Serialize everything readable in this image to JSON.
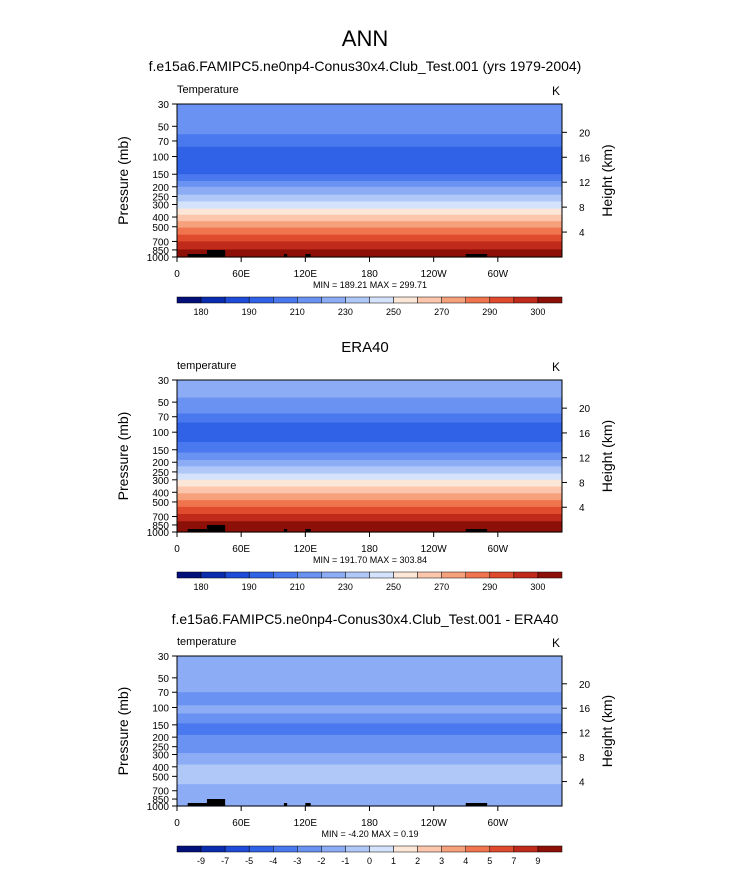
{
  "page_title": "ANN",
  "panel_colors": {
    "abs": [
      "#04107a",
      "#0a2db0",
      "#1e4cd8",
      "#2f62e6",
      "#4a78ee",
      "#6a92f2",
      "#8cacf5",
      "#b0c8f8",
      "#d4e2fb",
      "#fbe6d8",
      "#fbc6ab",
      "#f7a07c",
      "#f0754e",
      "#e04b2e",
      "#bf2a1a",
      "#8c1008"
    ],
    "diff": [
      "#04107a",
      "#0a2db0",
      "#1e4cd8",
      "#2f62e6",
      "#4a78ee",
      "#6a92f2",
      "#8cacf5",
      "#b0c8f8",
      "#d4e2fb",
      "#fbe6d8",
      "#fbc6ab",
      "#f7a07c",
      "#f0754e",
      "#e04b2e",
      "#bf2a1a",
      "#8c1008"
    ]
  },
  "chart_data": [
    {
      "type": "heatmap",
      "title": "f.e15a6.FAMIPC5.ne0np4-Conus30x4.Club_Test.001 (yrs 1979-2004)",
      "left_label": "Temperature",
      "units": "K",
      "ylabel": "Pressure (mb)",
      "ylabel_right": "Height (km)",
      "x_ticks": [
        "0",
        "60E",
        "120E",
        "180",
        "120W",
        "60W"
      ],
      "x_tick_values": [
        0,
        60,
        120,
        180,
        240,
        300
      ],
      "xlim": [
        0,
        360
      ],
      "y_ticks": [
        "30",
        "50",
        "70",
        "100",
        "150",
        "200",
        "250",
        "300",
        "400",
        "500",
        "700",
        "850",
        "1000"
      ],
      "y_tick_values": [
        30,
        50,
        70,
        100,
        150,
        200,
        250,
        300,
        400,
        500,
        700,
        850,
        1000
      ],
      "ylim": [
        30,
        1000
      ],
      "height_ticks": [
        "20",
        "16",
        "12",
        "8",
        "4"
      ],
      "height_tick_values": [
        20,
        16,
        12,
        8,
        4
      ],
      "stats": "MIN = 189.21   MAX = 299.71",
      "colorbar_labels": [
        "180",
        "190",
        "210",
        "230",
        "250",
        "270",
        "290",
        "300"
      ],
      "levels": [
        {
          "p": 30,
          "level": 5
        },
        {
          "p": 55,
          "level": 5
        },
        {
          "p": 60,
          "level": 4
        },
        {
          "p": 80,
          "level": 3
        },
        {
          "p": 125,
          "level": 3
        },
        {
          "p": 150,
          "level": 4
        },
        {
          "p": 175,
          "level": 5
        },
        {
          "p": 200,
          "level": 6
        },
        {
          "p": 240,
          "level": 7
        },
        {
          "p": 280,
          "level": 8
        },
        {
          "p": 330,
          "level": 9
        },
        {
          "p": 380,
          "level": 10
        },
        {
          "p": 440,
          "level": 11
        },
        {
          "p": 510,
          "level": 12
        },
        {
          "p": 600,
          "level": 13
        },
        {
          "p": 700,
          "level": 14
        },
        {
          "p": 840,
          "level": 15
        },
        {
          "p": 1000,
          "level": 15
        }
      ]
    },
    {
      "type": "heatmap",
      "title": "ERA40",
      "left_label": "temperature",
      "units": "K",
      "ylabel": "Pressure (mb)",
      "ylabel_right": "Height (km)",
      "x_ticks": [
        "0",
        "60E",
        "120E",
        "180",
        "120W",
        "60W"
      ],
      "x_tick_values": [
        0,
        60,
        120,
        180,
        240,
        300
      ],
      "xlim": [
        0,
        360
      ],
      "y_ticks": [
        "30",
        "50",
        "70",
        "100",
        "150",
        "200",
        "250",
        "300",
        "400",
        "500",
        "700",
        "850",
        "1000"
      ],
      "y_tick_values": [
        30,
        50,
        70,
        100,
        150,
        200,
        250,
        300,
        400,
        500,
        700,
        850,
        1000
      ],
      "ylim": [
        30,
        1000
      ],
      "height_ticks": [
        "20",
        "16",
        "12",
        "8",
        "4"
      ],
      "height_tick_values": [
        20,
        16,
        12,
        8,
        4
      ],
      "stats": "MIN = 191.70   MAX = 303.84",
      "colorbar_labels": [
        "180",
        "190",
        "210",
        "230",
        "250",
        "270",
        "290",
        "300"
      ],
      "levels": [
        {
          "p": 30,
          "level": 6
        },
        {
          "p": 45,
          "level": 5
        },
        {
          "p": 65,
          "level": 4
        },
        {
          "p": 80,
          "level": 3
        },
        {
          "p": 125,
          "level": 4
        },
        {
          "p": 160,
          "level": 5
        },
        {
          "p": 190,
          "level": 6
        },
        {
          "p": 220,
          "level": 7
        },
        {
          "p": 260,
          "level": 8
        },
        {
          "p": 300,
          "level": 9
        },
        {
          "p": 350,
          "level": 10
        },
        {
          "p": 410,
          "level": 11
        },
        {
          "p": 480,
          "level": 12
        },
        {
          "p": 560,
          "level": 13
        },
        {
          "p": 660,
          "level": 14
        },
        {
          "p": 780,
          "level": 15
        },
        {
          "p": 1000,
          "level": 15
        }
      ]
    },
    {
      "type": "heatmap",
      "title": "f.e15a6.FAMIPC5.ne0np4-Conus30x4.Club_Test.001 - ERA40",
      "left_label": "temperature",
      "units": "K",
      "ylabel": "Pressure (mb)",
      "ylabel_right": "Height (km)",
      "x_ticks": [
        "0",
        "60E",
        "120E",
        "180",
        "120W",
        "60W"
      ],
      "x_tick_values": [
        0,
        60,
        120,
        180,
        240,
        300
      ],
      "xlim": [
        0,
        360
      ],
      "y_ticks": [
        "30",
        "50",
        "70",
        "100",
        "150",
        "200",
        "250",
        "300",
        "400",
        "500",
        "700",
        "850",
        "1000"
      ],
      "y_tick_values": [
        30,
        50,
        70,
        100,
        150,
        200,
        250,
        300,
        400,
        500,
        700,
        850,
        1000
      ],
      "ylim": [
        30,
        1000
      ],
      "height_ticks": [
        "20",
        "16",
        "12",
        "8",
        "4"
      ],
      "height_tick_values": [
        20,
        16,
        12,
        8,
        4
      ],
      "stats": "MIN = -4.20   MAX =  0.19",
      "colorbar_labels": [
        "-9",
        "-7",
        "-5",
        "-4",
        "-3",
        "-2",
        "-1",
        "0",
        "1",
        "2",
        "3",
        "4",
        "5",
        "7",
        "9"
      ],
      "levels": [
        {
          "p": 30,
          "level": 6
        },
        {
          "p": 70,
          "level": 5
        },
        {
          "p": 95,
          "level": 6
        },
        {
          "p": 115,
          "level": 5
        },
        {
          "p": 145,
          "level": 4
        },
        {
          "p": 190,
          "level": 5
        },
        {
          "p": 290,
          "level": 6
        },
        {
          "p": 380,
          "level": 7
        },
        {
          "p": 600,
          "level": 6
        },
        {
          "p": 700,
          "level": 6
        },
        {
          "p": 1000,
          "level": 6
        }
      ]
    }
  ]
}
